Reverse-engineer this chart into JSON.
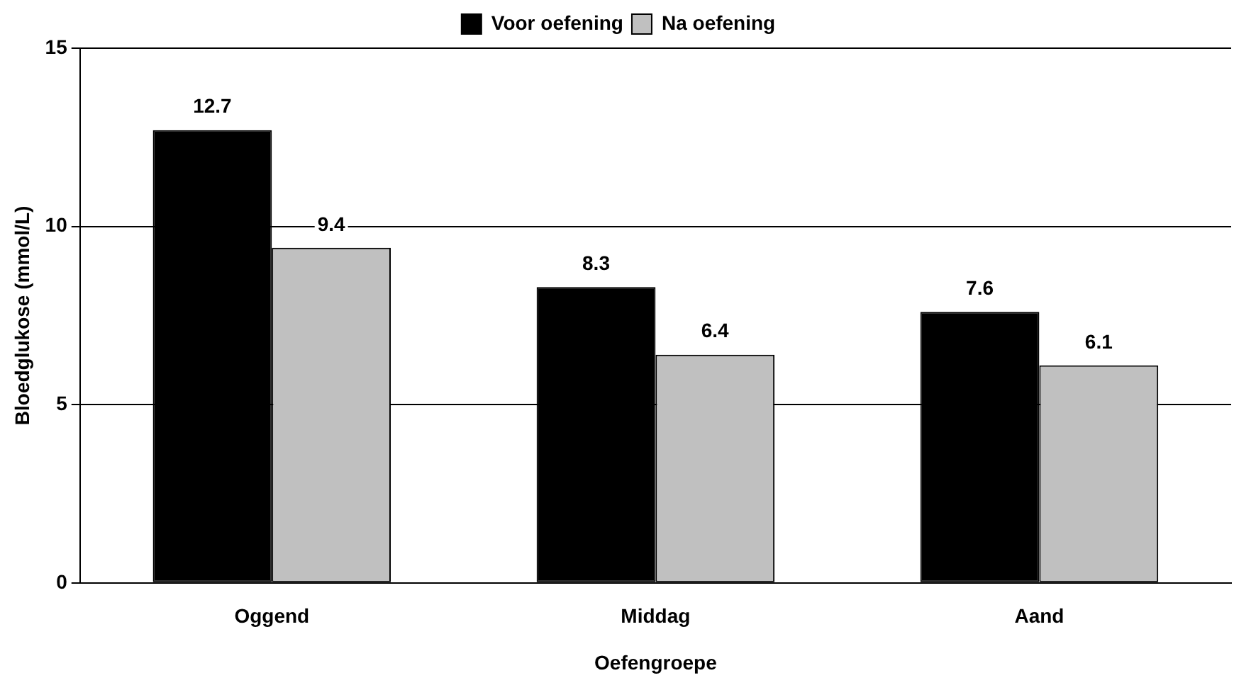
{
  "chart_data": {
    "type": "bar",
    "xlabel": "Oefengroepe",
    "ylabel": "Bloedglukose (mmol/L)",
    "categories": [
      "Oggend",
      "Middag",
      "Aand"
    ],
    "series": [
      {
        "name": "Voor oefening",
        "color": "#000000",
        "values": [
          12.7,
          8.3,
          7.6
        ]
      },
      {
        "name": "Na oefening",
        "color": "#c0c0c0",
        "values": [
          9.4,
          6.4,
          6.1
        ]
      }
    ],
    "ylim": [
      0,
      15
    ],
    "yticks": [
      0,
      5,
      10,
      15
    ],
    "grid": "y",
    "legend": "top",
    "data_labels": true
  }
}
